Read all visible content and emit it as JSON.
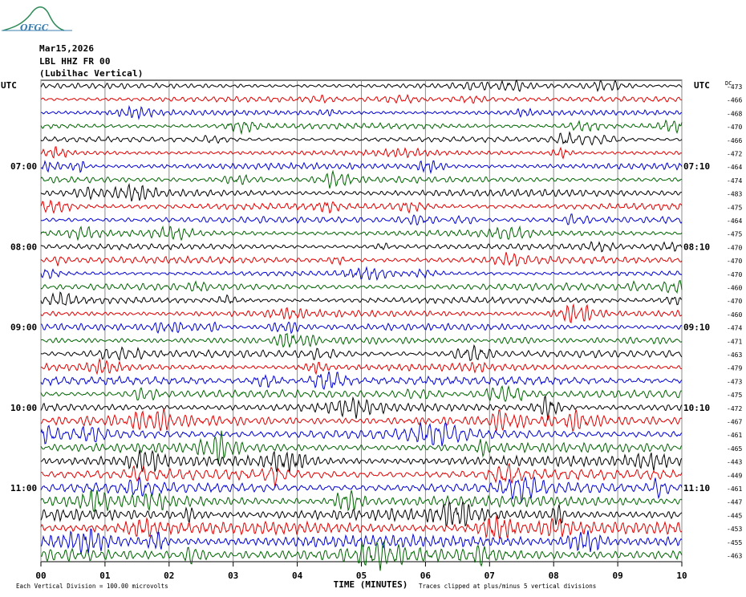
{
  "logo": {
    "text": "OFGC"
  },
  "header": {
    "date": "Mar15,2026",
    "station": "LBL HHZ FR 00",
    "location": "(Lubilhac Vertical)"
  },
  "chart_data": {
    "type": "line",
    "title": "LBL HHZ FR 00",
    "xlabel": "TIME (MINUTES)",
    "ylabel": "",
    "xlim": [
      0,
      10
    ],
    "x_ticks": [
      "00",
      "01",
      "02",
      "03",
      "04",
      "05",
      "06",
      "07",
      "08",
      "09",
      "10"
    ],
    "left_axis_label": "UTC",
    "right_axis_label": "UTC",
    "dc_label": "DC",
    "left_time_labels": [
      {
        "row": 6,
        "text": "07:00"
      },
      {
        "row": 12,
        "text": "08:00"
      },
      {
        "row": 18,
        "text": "09:00"
      },
      {
        "row": 24,
        "text": "10:00"
      },
      {
        "row": 30,
        "text": "11:00"
      }
    ],
    "right_time_labels": [
      {
        "row": 6,
        "text": "07:10"
      },
      {
        "row": 12,
        "text": "08:10"
      },
      {
        "row": 18,
        "text": "09:10"
      },
      {
        "row": 24,
        "text": "10:10"
      },
      {
        "row": 30,
        "text": "11:10"
      }
    ],
    "trace_colors": [
      "#000000",
      "#e00000",
      "#0000d0",
      "#006400"
    ],
    "traces": [
      {
        "dc": "-473",
        "amp": 1.0
      },
      {
        "dc": "-466",
        "amp": 1.0
      },
      {
        "dc": "-468",
        "amp": 1.0
      },
      {
        "dc": "-470",
        "amp": 1.1
      },
      {
        "dc": "-466",
        "amp": 1.0
      },
      {
        "dc": "-472",
        "amp": 1.0
      },
      {
        "dc": "-464",
        "amp": 1.2
      },
      {
        "dc": "-474",
        "amp": 1.2
      },
      {
        "dc": "-483",
        "amp": 1.4
      },
      {
        "dc": "-475",
        "amp": 1.3
      },
      {
        "dc": "-464",
        "amp": 1.2
      },
      {
        "dc": "-475",
        "amp": 1.2
      },
      {
        "dc": "-470",
        "amp": 1.1
      },
      {
        "dc": "-470",
        "amp": 1.3
      },
      {
        "dc": "-470",
        "amp": 1.0
      },
      {
        "dc": "-460",
        "amp": 1.3
      },
      {
        "dc": "-470",
        "amp": 1.2
      },
      {
        "dc": "-460",
        "amp": 1.3
      },
      {
        "dc": "-474",
        "amp": 1.3
      },
      {
        "dc": "-471",
        "amp": 1.4
      },
      {
        "dc": "-463",
        "amp": 1.4
      },
      {
        "dc": "-479",
        "amp": 1.3
      },
      {
        "dc": "-473",
        "amp": 1.6
      },
      {
        "dc": "-475",
        "amp": 1.5
      },
      {
        "dc": "-472",
        "amp": 1.6
      },
      {
        "dc": "-467",
        "amp": 2.0
      },
      {
        "dc": "-461",
        "amp": 2.0
      },
      {
        "dc": "-465",
        "amp": 1.8
      },
      {
        "dc": "-443",
        "amp": 1.9
      },
      {
        "dc": "-449",
        "amp": 2.0
      },
      {
        "dc": "-461",
        "amp": 2.0
      },
      {
        "dc": "-447",
        "amp": 2.0
      },
      {
        "dc": "-445",
        "amp": 2.2
      },
      {
        "dc": "-453",
        "amp": 2.4
      },
      {
        "dc": "-455",
        "amp": 2.4
      },
      {
        "dc": "-463",
        "amp": 2.4
      }
    ]
  },
  "footer": {
    "scale_note": "Each Vertical Division =  100.00 microvolts",
    "clip_note": "Traces clipped at plus/minus 5 vertical divisions"
  }
}
